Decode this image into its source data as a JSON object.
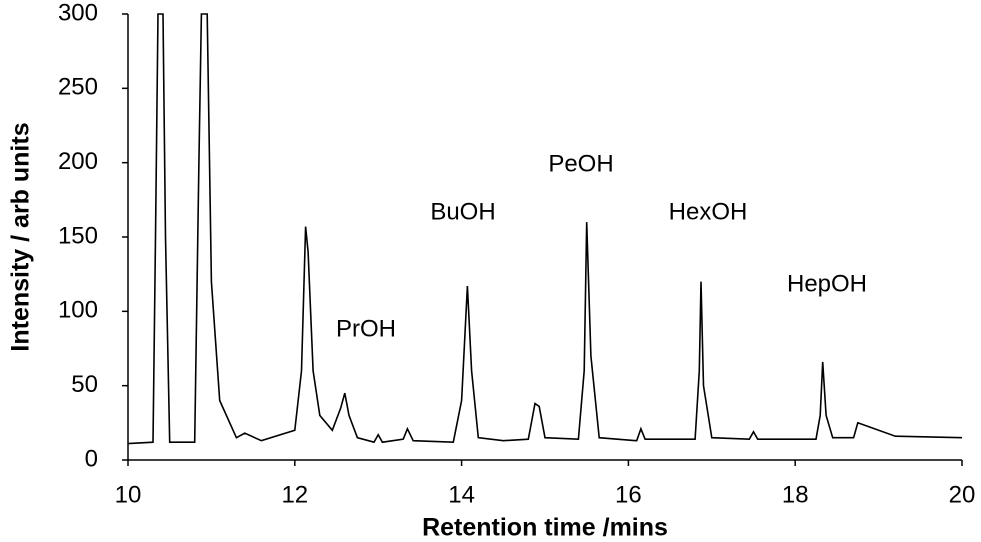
{
  "chart_data": {
    "type": "line",
    "xlabel": "Retention time /mins",
    "ylabel": "Intensity / arb units",
    "x": [
      10,
      10.3,
      10.33,
      10.36,
      10.42,
      10.45,
      10.5,
      10.8,
      10.85,
      10.88,
      10.95,
      11.0,
      11.1,
      11.3,
      11.4,
      11.6,
      12.0,
      12.08,
      12.13,
      12.16,
      12.22,
      12.3,
      12.45,
      12.55,
      12.6,
      12.65,
      12.75,
      12.95,
      13.0,
      13.05,
      13.3,
      13.35,
      13.42,
      13.9,
      14.0,
      14.07,
      14.12,
      14.2,
      14.5,
      14.8,
      14.88,
      14.93,
      15.0,
      15.4,
      15.47,
      15.5,
      15.55,
      15.65,
      16.1,
      16.15,
      16.2,
      16.8,
      16.85,
      16.87,
      16.9,
      17.0,
      17.45,
      17.5,
      17.55,
      18.25,
      18.3,
      18.33,
      18.37,
      18.45,
      18.7,
      18.75,
      18.9,
      19.2,
      20
    ],
    "values": [
      11,
      12,
      150,
      300,
      300,
      150,
      12,
      12,
      200,
      300,
      300,
      120,
      40,
      15,
      18,
      13,
      20,
      60,
      157,
      140,
      60,
      30,
      20,
      35,
      45,
      30,
      15,
      12,
      17,
      12,
      14,
      21,
      13,
      12,
      40,
      117,
      60,
      15,
      13,
      14,
      38,
      36,
      15,
      14,
      60,
      160,
      70,
      15,
      13,
      21,
      14,
      14,
      60,
      120,
      50,
      15,
      14,
      19,
      14,
      14,
      30,
      66,
      30,
      15,
      15,
      25,
      22,
      16,
      15
    ],
    "color": "#000000",
    "annotations": [
      "PrOH",
      "BuOH",
      "PeOH",
      "HexOH",
      "HepOH"
    ],
    "xlim": [
      10,
      20
    ],
    "xticks": [
      10,
      12,
      14,
      16,
      18,
      20
    ],
    "ylim": [
      0,
      300
    ],
    "yticks": [
      0,
      50,
      100,
      150,
      200,
      250,
      300
    ],
    "grid": false
  }
}
